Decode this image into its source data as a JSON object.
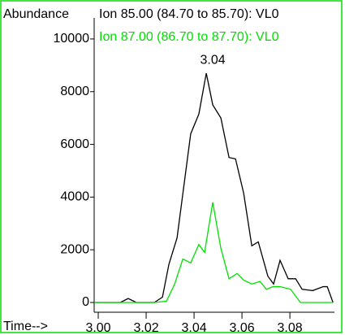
{
  "chart_data": {
    "type": "line",
    "ylabel": "Abundance",
    "xlabel": "Time-->",
    "annotations": [
      {
        "text": "3.04",
        "x": 3.0451,
        "y": 8700
      }
    ],
    "xlim": [
      2.9983,
      3.0986
    ],
    "ylim": [
      0,
      10800
    ],
    "xticks": [
      {
        "value": 3.0,
        "label": "3.00"
      },
      {
        "value": 3.02,
        "label": "3.02"
      },
      {
        "value": 3.04,
        "label": "3.04"
      },
      {
        "value": 3.06,
        "label": "3.06"
      },
      {
        "value": 3.08,
        "label": "3.08"
      }
    ],
    "yticks": [
      0,
      2000,
      4000,
      6000,
      8000,
      10000
    ],
    "series": [
      {
        "name": "Ion  85.00 (84.70 to 85.70): VL0",
        "color": "#000000",
        "x": [
          2.9983,
          3.0092,
          3.0125,
          3.0159,
          3.0234,
          3.0268,
          3.0295,
          3.0329,
          3.0386,
          3.042,
          3.0451,
          3.0478,
          3.0512,
          3.0546,
          3.0573,
          3.0607,
          3.0641,
          3.0668,
          3.0708,
          3.0732,
          3.0759,
          3.0793,
          3.0824,
          3.0851,
          3.0895,
          3.0939,
          3.0956,
          3.098
        ],
        "values": [
          0,
          0,
          150,
          0,
          0,
          200,
          1450,
          2450,
          6400,
          7150,
          8700,
          7500,
          7000,
          5500,
          5450,
          4150,
          2150,
          2300,
          1000,
          700,
          1600,
          900,
          900,
          500,
          450,
          600,
          600,
          0
        ]
      },
      {
        "name": "Ion  87.00 (86.70 to 87.70): VL0",
        "color": "#00e000",
        "x": [
          2.9983,
          3.0234,
          3.0285,
          3.0319,
          3.0353,
          3.0386,
          3.042,
          3.0444,
          3.0478,
          3.0512,
          3.0546,
          3.058,
          3.0607,
          3.0641,
          3.0675,
          3.0702,
          3.0729,
          3.0759,
          3.0803,
          3.0844,
          3.098
        ],
        "values": [
          0,
          0,
          50,
          700,
          1650,
          1500,
          2200,
          1900,
          3800,
          2050,
          900,
          1100,
          850,
          700,
          800,
          500,
          600,
          600,
          500,
          0,
          0
        ]
      }
    ]
  }
}
